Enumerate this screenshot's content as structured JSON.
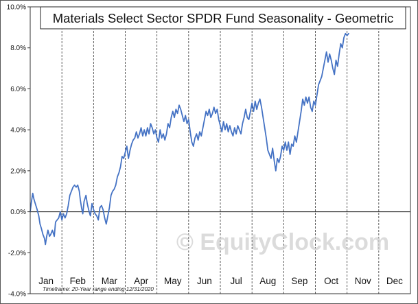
{
  "chart_data": {
    "type": "line",
    "title": "Materials Select Sector SPDR Fund Seasonality - Geometric",
    "xlabel": "",
    "ylabel": "",
    "ylim": [
      -4.0,
      10.0
    ],
    "yticks": [
      -4.0,
      -2.0,
      0.0,
      2.0,
      4.0,
      6.0,
      8.0,
      10.0
    ],
    "ytick_labels": [
      "-4.0%",
      "-2.0%",
      "0.0%",
      "2.0%",
      "4.0%",
      "6.0%",
      "8.0%",
      "10.0%"
    ],
    "months": [
      "Jan",
      "Feb",
      "Mar",
      "Apr",
      "May",
      "Jun",
      "Jul",
      "Aug",
      "Sep",
      "Oct",
      "Nov",
      "Dec"
    ],
    "grid": {
      "vertical_month_dividers": "dashed",
      "zero_line": "solid"
    },
    "watermark": "© EquityClock.com",
    "footnote": "Timeframe: 20-Year range ending 12/31/2020",
    "series": [
      {
        "color": "#4472c4",
        "points": [
          [
            0.0,
            0.0
          ],
          [
            0.04,
            0.5
          ],
          [
            0.08,
            0.9
          ],
          [
            0.12,
            0.6
          ],
          [
            0.18,
            0.3
          ],
          [
            0.22,
            0.1
          ],
          [
            0.27,
            -0.2
          ],
          [
            0.31,
            -0.6
          ],
          [
            0.35,
            -0.8
          ],
          [
            0.4,
            -1.1
          ],
          [
            0.45,
            -1.3
          ],
          [
            0.48,
            -1.6
          ],
          [
            0.52,
            -1.2
          ],
          [
            0.56,
            -0.9
          ],
          [
            0.61,
            -1.2
          ],
          [
            0.65,
            -1.1
          ],
          [
            0.7,
            -0.9
          ],
          [
            0.76,
            -1.2
          ],
          [
            0.8,
            -0.5
          ],
          [
            0.85,
            -0.4
          ],
          [
            0.9,
            -0.3
          ],
          [
            0.95,
            0.0
          ],
          [
            1.0,
            -0.4
          ],
          [
            1.05,
            -0.1
          ],
          [
            1.1,
            -0.3
          ],
          [
            1.15,
            -0.1
          ],
          [
            1.2,
            0.3
          ],
          [
            1.25,
            0.8
          ],
          [
            1.3,
            1.0
          ],
          [
            1.35,
            1.2
          ],
          [
            1.4,
            1.3
          ],
          [
            1.45,
            1.2
          ],
          [
            1.5,
            1.3
          ],
          [
            1.55,
            1.0
          ],
          [
            1.58,
            0.6
          ],
          [
            1.62,
            0.2
          ],
          [
            1.66,
            -0.1
          ],
          [
            1.7,
            0.5
          ],
          [
            1.76,
            0.8
          ],
          [
            1.8,
            0.4
          ],
          [
            1.86,
            0.0
          ],
          [
            1.9,
            -0.2
          ],
          [
            1.95,
            0.4
          ],
          [
            2.0,
            0.1
          ],
          [
            2.05,
            -0.1
          ],
          [
            2.1,
            -0.2
          ],
          [
            2.15,
            -0.4
          ],
          [
            2.2,
            0.2
          ],
          [
            2.25,
            0.3
          ],
          [
            2.3,
            0.1
          ],
          [
            2.35,
            -0.3
          ],
          [
            2.4,
            -0.6
          ],
          [
            2.45,
            -0.2
          ],
          [
            2.5,
            0.2
          ],
          [
            2.55,
            0.8
          ],
          [
            2.6,
            1.0
          ],
          [
            2.65,
            1.1
          ],
          [
            2.7,
            1.3
          ],
          [
            2.75,
            1.7
          ],
          [
            2.8,
            1.9
          ],
          [
            2.85,
            2.2
          ],
          [
            2.9,
            2.7
          ],
          [
            2.95,
            2.6
          ],
          [
            3.0,
            2.9
          ],
          [
            3.05,
            3.2
          ],
          [
            3.1,
            2.6
          ],
          [
            3.15,
            3.0
          ],
          [
            3.2,
            3.3
          ],
          [
            3.25,
            3.5
          ],
          [
            3.3,
            3.6
          ],
          [
            3.35,
            3.9
          ],
          [
            3.4,
            3.6
          ],
          [
            3.45,
            3.8
          ],
          [
            3.5,
            4.1
          ],
          [
            3.55,
            3.7
          ],
          [
            3.6,
            4.0
          ],
          [
            3.65,
            3.7
          ],
          [
            3.7,
            4.1
          ],
          [
            3.75,
            3.8
          ],
          [
            3.8,
            4.3
          ],
          [
            3.85,
            4.1
          ],
          [
            3.9,
            3.8
          ],
          [
            3.95,
            4.0
          ],
          [
            4.0,
            3.6
          ],
          [
            4.05,
            3.4
          ],
          [
            4.1,
            4.0
          ],
          [
            4.15,
            3.6
          ],
          [
            4.2,
            3.8
          ],
          [
            4.25,
            3.5
          ],
          [
            4.3,
            3.8
          ],
          [
            4.35,
            4.3
          ],
          [
            4.4,
            4.1
          ],
          [
            4.45,
            4.6
          ],
          [
            4.5,
            4.9
          ],
          [
            4.55,
            4.6
          ],
          [
            4.6,
            5.0
          ],
          [
            4.65,
            4.8
          ],
          [
            4.7,
            5.2
          ],
          [
            4.75,
            5.0
          ],
          [
            4.8,
            4.7
          ],
          [
            4.85,
            4.4
          ],
          [
            4.9,
            4.7
          ],
          [
            4.95,
            4.3
          ],
          [
            5.0,
            4.5
          ],
          [
            5.05,
            3.9
          ],
          [
            5.1,
            3.4
          ],
          [
            5.15,
            3.2
          ],
          [
            5.2,
            3.6
          ],
          [
            5.25,
            3.8
          ],
          [
            5.3,
            3.5
          ],
          [
            5.35,
            3.9
          ],
          [
            5.4,
            3.7
          ],
          [
            5.45,
            4.1
          ],
          [
            5.5,
            4.5
          ],
          [
            5.55,
            4.9
          ],
          [
            5.6,
            4.7
          ],
          [
            5.65,
            5.0
          ],
          [
            5.7,
            4.6
          ],
          [
            5.75,
            4.8
          ],
          [
            5.8,
            5.1
          ],
          [
            5.85,
            4.8
          ],
          [
            5.9,
            5.0
          ],
          [
            5.95,
            4.5
          ],
          [
            6.0,
            4.2
          ],
          [
            6.05,
            3.9
          ],
          [
            6.1,
            4.4
          ],
          [
            6.15,
            4.0
          ],
          [
            6.2,
            4.3
          ],
          [
            6.25,
            3.9
          ],
          [
            6.3,
            4.2
          ],
          [
            6.35,
            3.9
          ],
          [
            6.4,
            3.7
          ],
          [
            6.45,
            4.1
          ],
          [
            6.5,
            3.8
          ],
          [
            6.55,
            4.2
          ],
          [
            6.6,
            4.0
          ],
          [
            6.65,
            3.8
          ],
          [
            6.7,
            4.3
          ],
          [
            6.75,
            4.6
          ],
          [
            6.8,
            5.0
          ],
          [
            6.85,
            4.6
          ],
          [
            6.9,
            4.5
          ],
          [
            6.95,
            4.9
          ],
          [
            7.0,
            5.3
          ],
          [
            7.05,
            4.9
          ],
          [
            7.1,
            5.4
          ],
          [
            7.15,
            5.0
          ],
          [
            7.2,
            5.3
          ],
          [
            7.25,
            5.5
          ],
          [
            7.3,
            5.1
          ],
          [
            7.35,
            4.6
          ],
          [
            7.4,
            4.1
          ],
          [
            7.45,
            3.6
          ],
          [
            7.5,
            3.0
          ],
          [
            7.55,
            2.8
          ],
          [
            7.6,
            2.6
          ],
          [
            7.65,
            3.1
          ],
          [
            7.7,
            2.5
          ],
          [
            7.75,
            2.0
          ],
          [
            7.8,
            2.6
          ],
          [
            7.85,
            2.4
          ],
          [
            7.9,
            2.7
          ],
          [
            7.95,
            3.2
          ],
          [
            8.0,
            3.0
          ],
          [
            8.05,
            3.4
          ],
          [
            8.1,
            3.0
          ],
          [
            8.15,
            3.4
          ],
          [
            8.2,
            2.8
          ],
          [
            8.25,
            3.3
          ],
          [
            8.3,
            3.2
          ],
          [
            8.35,
            3.7
          ],
          [
            8.4,
            3.4
          ],
          [
            8.45,
            3.9
          ],
          [
            8.5,
            4.4
          ],
          [
            8.55,
            4.9
          ],
          [
            8.6,
            5.5
          ],
          [
            8.65,
            5.2
          ],
          [
            8.7,
            5.6
          ],
          [
            8.75,
            5.3
          ],
          [
            8.8,
            5.6
          ],
          [
            8.85,
            5.1
          ],
          [
            8.9,
            4.9
          ],
          [
            8.95,
            5.4
          ],
          [
            9.0,
            5.2
          ],
          [
            9.05,
            5.7
          ],
          [
            9.1,
            6.2
          ],
          [
            9.15,
            6.4
          ],
          [
            9.2,
            6.6
          ],
          [
            9.25,
            7.0
          ],
          [
            9.3,
            7.4
          ],
          [
            9.35,
            7.8
          ],
          [
            9.4,
            7.3
          ],
          [
            9.45,
            7.7
          ],
          [
            9.5,
            7.4
          ],
          [
            9.55,
            7.0
          ],
          [
            9.6,
            6.7
          ],
          [
            9.65,
            7.4
          ],
          [
            9.7,
            7.1
          ],
          [
            9.75,
            7.7
          ],
          [
            9.8,
            8.2
          ],
          [
            9.85,
            8.0
          ],
          [
            9.9,
            8.5
          ],
          [
            9.95,
            8.7
          ],
          [
            10.0,
            8.6
          ],
          [
            10.05,
            8.7
          ]
        ]
      }
    ]
  }
}
